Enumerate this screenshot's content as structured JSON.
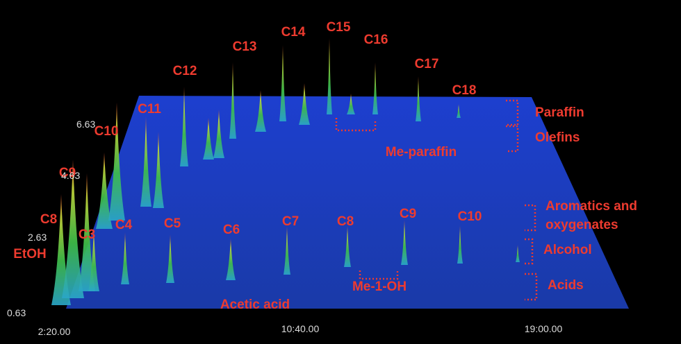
{
  "axes": {
    "y_ticks": [
      "0.63",
      "2.63",
      "4.63",
      "6.63"
    ],
    "x_ticks": [
      "2:20.00",
      "10:40.00",
      "19:00.00"
    ]
  },
  "upper_peaks": [
    "C8",
    "C9",
    "C10",
    "C11",
    "C12",
    "C13",
    "C14",
    "C15",
    "C16",
    "C17",
    "C18"
  ],
  "lower_peaks": [
    "EtOH",
    "C3",
    "C4",
    "C5",
    "C6",
    "C7",
    "C8",
    "C9",
    "C10"
  ],
  "groups": {
    "paraffin": "Paraffin",
    "olefins": "Olefins",
    "me_paraffin": "Me-paraffin",
    "aromatics": [
      "Aromatics and",
      "oxygenates"
    ],
    "alcohol": "Alcohol",
    "acids": "Acids",
    "me_1_oh": "Me-1-OH",
    "acetic_acid": "Acetic acid"
  }
}
